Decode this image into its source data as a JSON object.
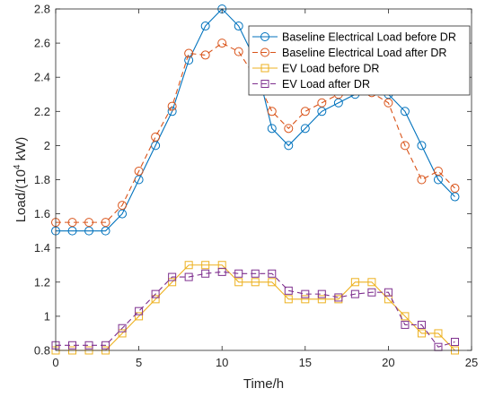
{
  "chart_data": {
    "type": "line",
    "xlabel": "Time/h",
    "ylabel": {
      "prefix": "Load/(10",
      "sup": "4",
      "suffix": " kW)"
    },
    "xlim": [
      0,
      25
    ],
    "ylim": [
      0.8,
      2.8
    ],
    "xticks": [
      "0",
      "5",
      "10",
      "15",
      "20",
      "25"
    ],
    "yticks": [
      "0.8",
      "1",
      "1.2",
      "1.4",
      "1.6",
      "1.8",
      "2",
      "2.2",
      "2.4",
      "2.6",
      "2.8"
    ],
    "grid": false,
    "legend_position": "top-right",
    "x": [
      0,
      1,
      2,
      3,
      4,
      5,
      6,
      7,
      8,
      9,
      10,
      11,
      12,
      13,
      14,
      15,
      16,
      17,
      18,
      19,
      20,
      21,
      22,
      23,
      24
    ],
    "series": [
      {
        "name": "Baseline Electrical Load before DR",
        "color": "#0072BD",
        "dash": "solid",
        "marker": "circle",
        "values": [
          1.5,
          1.5,
          1.5,
          1.5,
          1.6,
          1.8,
          2.0,
          2.2,
          2.5,
          2.7,
          2.8,
          2.7,
          2.5,
          2.1,
          2.0,
          2.1,
          2.2,
          2.25,
          2.3,
          2.4,
          2.3,
          2.2,
          2.0,
          1.8,
          1.7
        ]
      },
      {
        "name": "Baseline Electrical Load after DR",
        "color": "#D95319",
        "dash": "dashed",
        "marker": "circle",
        "values": [
          1.55,
          1.55,
          1.55,
          1.55,
          1.65,
          1.85,
          2.05,
          2.23,
          2.54,
          2.53,
          2.6,
          2.55,
          2.4,
          2.2,
          2.1,
          2.2,
          2.25,
          2.3,
          2.35,
          2.31,
          2.25,
          2.0,
          1.8,
          1.85,
          1.75
        ]
      },
      {
        "name": "EV Load before DR",
        "color": "#EDB120",
        "dash": "solid",
        "marker": "square",
        "values": [
          0.8,
          0.8,
          0.8,
          0.8,
          0.9,
          1.0,
          1.1,
          1.2,
          1.3,
          1.3,
          1.3,
          1.2,
          1.2,
          1.2,
          1.1,
          1.1,
          1.1,
          1.1,
          1.2,
          1.2,
          1.1,
          1.0,
          0.9,
          0.9,
          0.8
        ]
      },
      {
        "name": "EV Load after DR",
        "color": "#7E2F8E",
        "dash": "dashed",
        "marker": "square",
        "values": [
          0.83,
          0.83,
          0.83,
          0.83,
          0.93,
          1.03,
          1.13,
          1.23,
          1.23,
          1.25,
          1.26,
          1.25,
          1.25,
          1.25,
          1.15,
          1.13,
          1.13,
          1.11,
          1.13,
          1.14,
          1.14,
          0.95,
          0.95,
          0.82,
          0.85
        ]
      }
    ]
  }
}
